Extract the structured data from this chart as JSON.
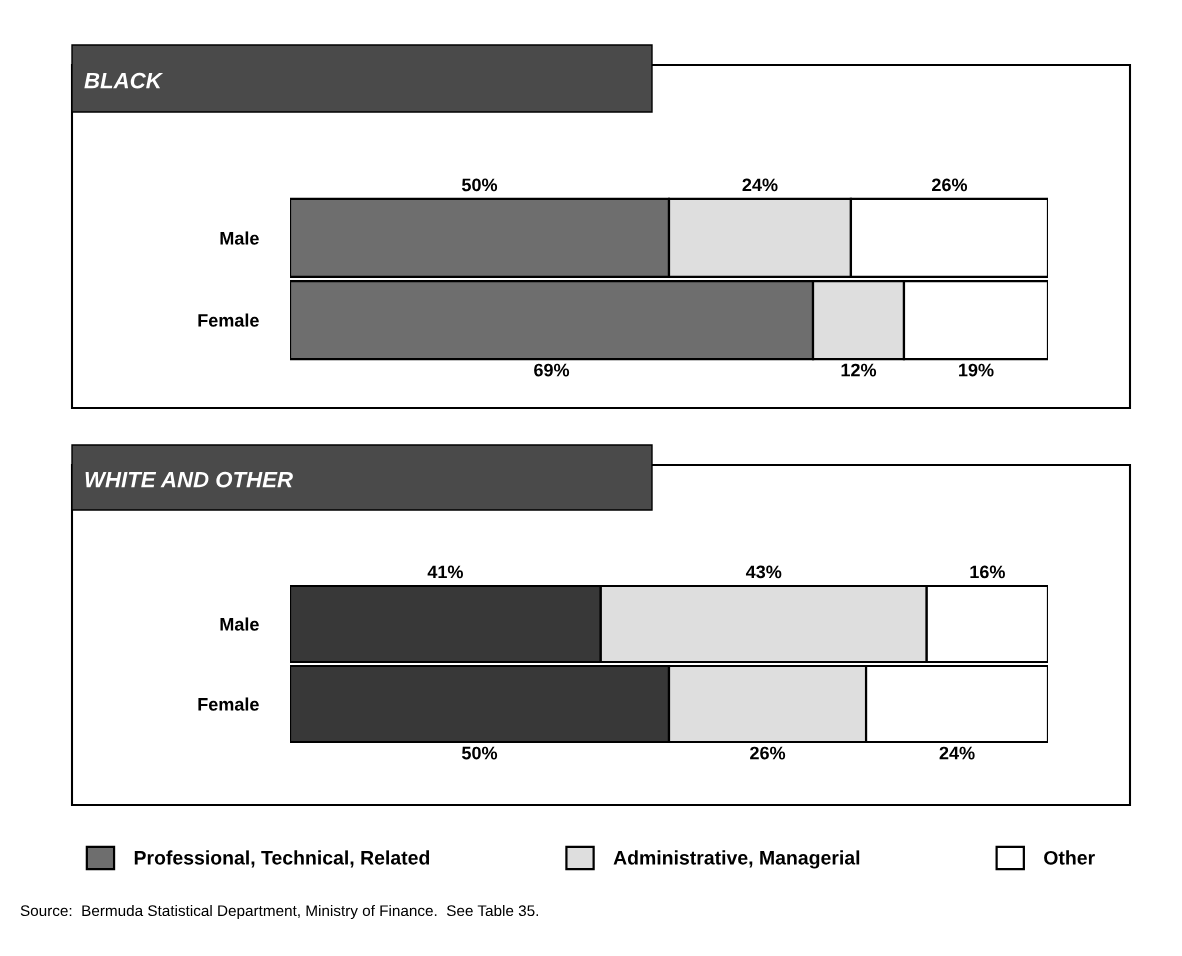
{
  "chart_data": [
    {
      "type": "bar",
      "title": "BLACK",
      "orientation": "horizontal",
      "stacked": true,
      "categories": [
        "Male",
        "Female"
      ],
      "legend": "bottom",
      "series": [
        {
          "name": "Professional, Technical, Related",
          "color": "#6e6e6e",
          "values": [
            50,
            69
          ],
          "value_labels": [
            "50%",
            "69%"
          ]
        },
        {
          "name": "Administrative, Managerial",
          "color": "#dedede",
          "values": [
            24,
            12
          ],
          "value_labels": [
            "24%",
            "12%"
          ]
        },
        {
          "name": "Other",
          "color": "#ffffff",
          "values": [
            26,
            19
          ],
          "value_labels": [
            "26%",
            "19%"
          ]
        }
      ]
    },
    {
      "type": "bar",
      "title": "WHITE AND OTHER",
      "orientation": "horizontal",
      "stacked": true,
      "categories": [
        "Male",
        "Female"
      ],
      "series": [
        {
          "color": "#383838",
          "values": [
            41,
            50
          ],
          "value_labels": [
            "41%",
            "50%"
          ]
        },
        {
          "color": "#dedede",
          "values": [
            43,
            26
          ],
          "value_labels": [
            "43%",
            "26%"
          ]
        },
        {
          "color": "#ffffff",
          "values": [
            16,
            24
          ],
          "value_labels": [
            "16%",
            "24%"
          ]
        }
      ],
      "annotations": [
        "Source:  Bermuda Statistical Department, Ministry of Finance.  See Table 35."
      ]
    }
  ]
}
